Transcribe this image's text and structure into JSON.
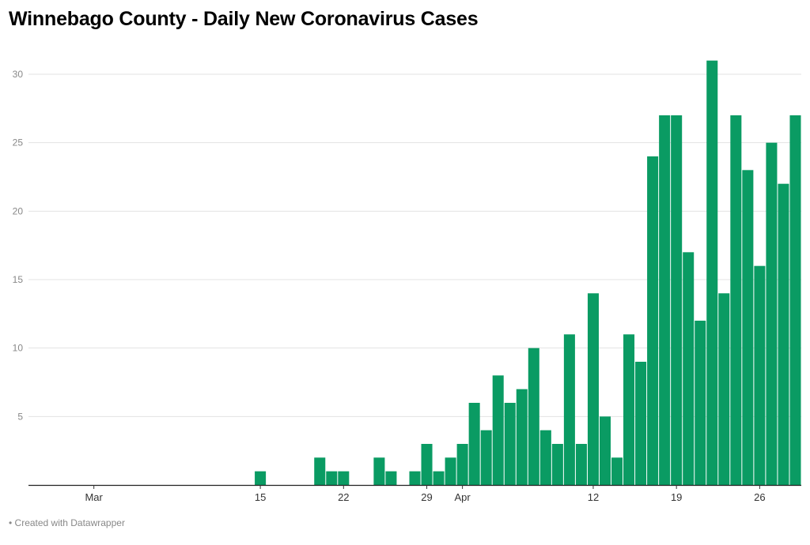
{
  "title": "Winnebago County - Daily New Coronavirus Cases",
  "footer": "• Created with Datawrapper",
  "chart_data": {
    "type": "bar",
    "title": "Winnebago County - Daily New Coronavirus Cases",
    "xlabel": "",
    "ylabel": "",
    "ylim": [
      0,
      32
    ],
    "yticks": [
      5,
      10,
      15,
      20,
      25,
      30
    ],
    "grid": true,
    "bar_color": "#0a9b63",
    "start_date": "2020-02-25",
    "x_tick_labels": [
      {
        "label": "Mar",
        "date": "2020-03-01"
      },
      {
        "label": "15",
        "date": "2020-03-15"
      },
      {
        "label": "22",
        "date": "2020-03-22"
      },
      {
        "label": "29",
        "date": "2020-03-29"
      },
      {
        "label": "Apr",
        "date": "2020-04-01"
      },
      {
        "label": "12",
        "date": "2020-04-12"
      },
      {
        "label": "19",
        "date": "2020-04-19"
      },
      {
        "label": "26",
        "date": "2020-04-26"
      }
    ],
    "dates": [
      "2020-02-25",
      "2020-02-26",
      "2020-02-27",
      "2020-02-28",
      "2020-02-29",
      "2020-03-01",
      "2020-03-02",
      "2020-03-03",
      "2020-03-04",
      "2020-03-05",
      "2020-03-06",
      "2020-03-07",
      "2020-03-08",
      "2020-03-09",
      "2020-03-10",
      "2020-03-11",
      "2020-03-12",
      "2020-03-13",
      "2020-03-14",
      "2020-03-15",
      "2020-03-16",
      "2020-03-17",
      "2020-03-18",
      "2020-03-19",
      "2020-03-20",
      "2020-03-21",
      "2020-03-22",
      "2020-03-23",
      "2020-03-24",
      "2020-03-25",
      "2020-03-26",
      "2020-03-27",
      "2020-03-28",
      "2020-03-29",
      "2020-03-30",
      "2020-03-31",
      "2020-04-01",
      "2020-04-02",
      "2020-04-03",
      "2020-04-04",
      "2020-04-05",
      "2020-04-06",
      "2020-04-07",
      "2020-04-08",
      "2020-04-09",
      "2020-04-10",
      "2020-04-11",
      "2020-04-12",
      "2020-04-13",
      "2020-04-14",
      "2020-04-15",
      "2020-04-16",
      "2020-04-17",
      "2020-04-18",
      "2020-04-19",
      "2020-04-20",
      "2020-04-21",
      "2020-04-22",
      "2020-04-23",
      "2020-04-24",
      "2020-04-25",
      "2020-04-26",
      "2020-04-27",
      "2020-04-28",
      "2020-04-29"
    ],
    "values": [
      0,
      0,
      0,
      0,
      0,
      0,
      0,
      0,
      0,
      0,
      0,
      0,
      0,
      0,
      0,
      0,
      0,
      0,
      0,
      1,
      0,
      0,
      0,
      0,
      2,
      1,
      1,
      0,
      0,
      2,
      1,
      0,
      1,
      3,
      1,
      2,
      3,
      6,
      4,
      8,
      6,
      7,
      10,
      4,
      3,
      11,
      3,
      14,
      5,
      2,
      11,
      9,
      24,
      27,
      27,
      17,
      12,
      31,
      14,
      27,
      23,
      16,
      25,
      22,
      27
    ]
  }
}
